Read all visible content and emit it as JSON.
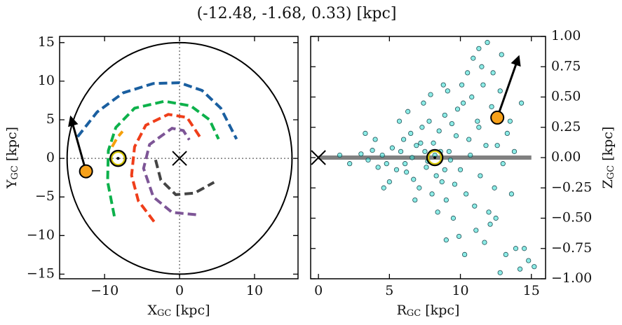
{
  "title": "(-12.48, -1.68, 0.33) [kpc]",
  "chart_data": [
    {
      "type": "line",
      "xlabel": [
        "X",
        "GC",
        " [kpc]"
      ],
      "ylabel": [
        "Y",
        "GC",
        " [kpc]"
      ],
      "xlim": [
        -16,
        15.8
      ],
      "ylim": [
        -15.6,
        15.8
      ],
      "xticks": [
        {
          "value": -10,
          "label": "−10"
        },
        0,
        10
      ],
      "yticks": [
        {
          "value": -15,
          "label": "−15"
        },
        {
          "value": -10,
          "label": "−10"
        },
        {
          "value": -5,
          "label": "−5"
        },
        0,
        5,
        10,
        15
      ],
      "y_tick_side": "left",
      "crosshair": true,
      "circle_radius": 15,
      "series": [
        {
          "color": "#1a5fa0",
          "x": [
            -13.6,
            -11,
            -7.5,
            -3.5,
            0,
            3,
            5.5,
            7.6
          ],
          "y": [
            2.8,
            6,
            8.5,
            9.7,
            9.8,
            8.8,
            6.5,
            2.5
          ]
        },
        {
          "color": "#0db14b",
          "x": [
            -8.7,
            -9.6,
            -9.5,
            -8.5,
            -6,
            -2,
            1.5,
            4,
            5.2
          ],
          "y": [
            -7.5,
            -3,
            1,
            4,
            6.5,
            7.4,
            6.8,
            5,
            2.5
          ]
        },
        {
          "color": "#ef3e1a",
          "x": [
            -3.4,
            -5.5,
            -6.4,
            -6,
            -4.5,
            -1.5,
            1,
            2.7
          ],
          "y": [
            -8.2,
            -5.5,
            -2.2,
            1.5,
            4.3,
            5.7,
            5.3,
            2.8
          ]
        },
        {
          "color": "#7d5596",
          "x": [
            2.2,
            -1,
            -3.5,
            -4.8,
            -4,
            -1,
            0.5,
            1.3
          ],
          "y": [
            -7.3,
            -7,
            -5,
            -1.3,
            1.8,
            3.9,
            3.6,
            2.4
          ]
        },
        {
          "color": "#444444",
          "x": [
            -3.2,
            -2.5,
            -0.5,
            2,
            4.6
          ],
          "y": [
            -0.2,
            -2.8,
            -4.7,
            -4.5,
            -3.1
          ]
        },
        {
          "color": "#f5a00b",
          "x": [
            -9,
            -8.3,
            -7.6
          ],
          "y": [
            1.5,
            2.7,
            3.5
          ]
        }
      ],
      "markers": [
        {
          "marker": "cross",
          "x": 0,
          "y": 0
        },
        {
          "marker": "sun",
          "x": -8.2,
          "y": 0
        },
        {
          "marker": "star",
          "x": -12.48,
          "y": -1.68
        }
      ],
      "arrow": {
        "x": [
          -12.48,
          -14.5
        ],
        "y": [
          -1.68,
          5.3
        ]
      }
    },
    {
      "type": "scatter",
      "xlabel": [
        "R",
        "GC",
        " [kpc]"
      ],
      "ylabel": [
        "Z",
        "GC",
        " [kpc]"
      ],
      "xlim": [
        -0.55,
        16
      ],
      "ylim": [
        -1,
        1
      ],
      "xticks": [
        0,
        5,
        10,
        15
      ],
      "yticks": [
        {
          "value": -1,
          "label": "−1.00"
        },
        {
          "value": -0.75,
          "label": "−0.75"
        },
        {
          "value": -0.5,
          "label": "−0.50"
        },
        {
          "value": -0.25,
          "label": "−0.25"
        },
        {
          "value": 0,
          "label": "0.00"
        },
        0.25,
        {
          "value": 0.5,
          "label": "0.50"
        },
        {
          "value": 0.75,
          "label": "0.75"
        },
        {
          "value": 1,
          "label": "1.00"
        }
      ],
      "y_tick_side": "right",
      "plane": {
        "x": [
          0,
          15
        ],
        "y": [
          0,
          0
        ]
      },
      "color": "#3fe0d6",
      "x": [
        4.5,
        4.8,
        5.2,
        5.5,
        5.8,
        6.0,
        6.2,
        6.5,
        6.7,
        6.9,
        7.1,
        7.3,
        7.5,
        7.6,
        7.8,
        8.0,
        8.1,
        8.3,
        8.5,
        8.7,
        8.9,
        9.0,
        9.2,
        9.4,
        9.6,
        9.8,
        10.0,
        10.2,
        10.4,
        10.6,
        10.8,
        11.0,
        11.2,
        11.4,
        11.6,
        11.8,
        12.0,
        12.2,
        12.4,
        12.8,
        13.0,
        13.3,
        13.6,
        2.2,
        3.0,
        3.5,
        3.8,
        4.2,
        1.5,
        3.3,
        6.3,
        6.8,
        7.4,
        8.4,
        9.1,
        9.5,
        10.5,
        10.9,
        11.3,
        11.5,
        10.1,
        9.9,
        11.1,
        12.1,
        12.5,
        11.7,
        13.2,
        14.5,
        14.8,
        14.2,
        13.9,
        15.2,
        12.8,
        9.0,
        12.9,
        12.3,
        8.8,
        7.9,
        5.0,
        5.7,
        4.0,
        4.6,
        13.5,
        13.8,
        14.3,
        10.3,
        11.9,
        8.2,
        8.6,
        7.7,
        9.3,
        6.6,
        10.7,
        12.6,
        11.3,
        9.7,
        8.9,
        7.2,
        6.1
      ],
      "y": [
        0.02,
        -0.05,
        0.08,
        -0.1,
        0.05,
        0.15,
        -0.12,
        0.2,
        -0.18,
        0.1,
        -0.25,
        0.25,
        0.05,
        -0.08,
        0.3,
        -0.3,
        0.12,
        -0.15,
        0.22,
        -0.2,
        0.35,
        -0.35,
        0.05,
        0.28,
        -0.22,
        0.4,
        -0.1,
        0.45,
        -0.3,
        0.15,
        0.5,
        -0.4,
        0.3,
        -0.15,
        0.6,
        0.1,
        -0.45,
        0.42,
        -0.25,
        0.55,
        -0.05,
        0.2,
        -0.3,
        -0.05,
        0.03,
        -0.02,
        0.06,
        -0.08,
        0.02,
        0.2,
        0.38,
        -0.35,
        0.45,
        -0.45,
        0.55,
        -0.5,
        0.7,
        0.82,
        0.9,
        0.75,
        0.6,
        -0.65,
        -0.6,
        -0.55,
        -0.5,
        -0.7,
        -0.8,
        -0.75,
        -0.85,
        -0.92,
        -0.75,
        -0.9,
        -0.95,
        -0.68,
        0.85,
        0.7,
        0.6,
        0.52,
        -0.2,
        0.3,
        0.15,
        -0.25,
        0.3,
        0.05,
        0.45,
        -0.8,
        0.95,
        0.02,
        0.05,
        -0.03,
        -0.02,
        0.0,
        0.02,
        0.1,
        0.25,
        0.18,
        -0.1,
        0.12,
        -0.05
      ],
      "markers": [
        {
          "marker": "cross",
          "x": 0,
          "y": 0
        },
        {
          "marker": "sun",
          "x": 8.2,
          "y": 0
        },
        {
          "marker": "star",
          "x": 12.6,
          "y": 0.33
        }
      ],
      "arrow": {
        "x": [
          12.6,
          14.1
        ],
        "y": [
          0.33,
          0.83
        ]
      }
    }
  ]
}
